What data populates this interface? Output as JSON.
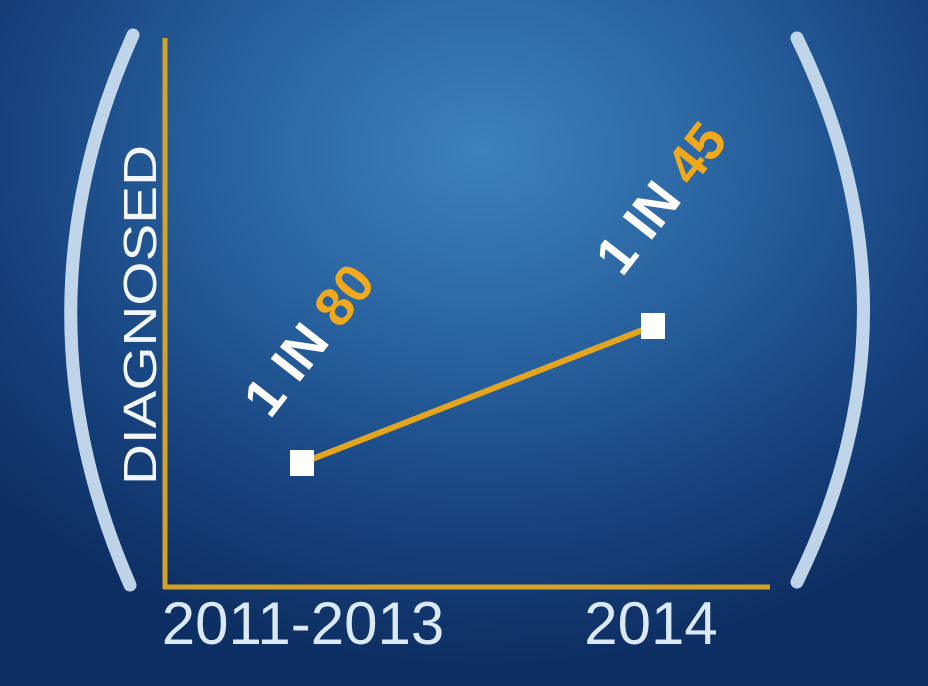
{
  "chart_data": {
    "type": "line",
    "ylabel": "DIAGNOSED",
    "xlabel": "",
    "categories": [
      "2011-2013",
      "2014"
    ],
    "series": [
      {
        "values": [
          80,
          45
        ]
      }
    ],
    "data_labels": [
      {
        "prefix": "1 IN ",
        "value": "80"
      },
      {
        "prefix": "1 IN ",
        "value": "45"
      }
    ],
    "colors": {
      "axis": "#d3a22b",
      "line": "#e3a51f",
      "marker": "#ffffff",
      "label_text": "#ffffff",
      "label_value": "#f0a91c",
      "tick_text": "#dbe8f6",
      "bracket": "#c9dcef"
    },
    "grid": false,
    "legend": "none"
  }
}
